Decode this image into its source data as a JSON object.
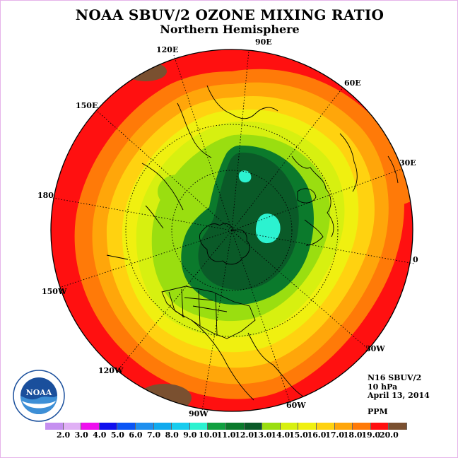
{
  "header": {
    "title": "NOAA SBUV/2 OZONE MIXING RATIO",
    "subtitle": "Northern Hemisphere"
  },
  "map": {
    "longitude_labels": [
      "90E",
      "60E",
      "30E",
      "0",
      "30W",
      "60W",
      "90W",
      "120W",
      "150W",
      "180",
      "150E",
      "120E"
    ]
  },
  "info": {
    "satellite": "N16 SBUV/2",
    "level": "10 hPa",
    "date": "April 13, 2014",
    "units": "PPM"
  },
  "legend": {
    "ticks": [
      "2.0",
      "3.0",
      "4.0",
      "5.0",
      "6.0",
      "7.0",
      "8.0",
      "9.0",
      "10.0",
      "11.0",
      "12.0",
      "13.0",
      "14.0",
      "15.0",
      "16.0",
      "17.0",
      "18.0",
      "19.0",
      "20.0"
    ],
    "colors": [
      "#c58ff0",
      "#e0b0f5",
      "#ee10ee",
      "#1010ee",
      "#0a55f5",
      "#1e8fef",
      "#10aaee",
      "#18ccee",
      "#2cf2d0",
      "#10a040",
      "#0b7a2c",
      "#0a5a28",
      "#9ade10",
      "#d7f010",
      "#f0f010",
      "#ffd210",
      "#ffa60a",
      "#ff7a08",
      "#ff1010",
      "#7a5030"
    ]
  },
  "logo": {
    "text": "NOAA"
  }
}
